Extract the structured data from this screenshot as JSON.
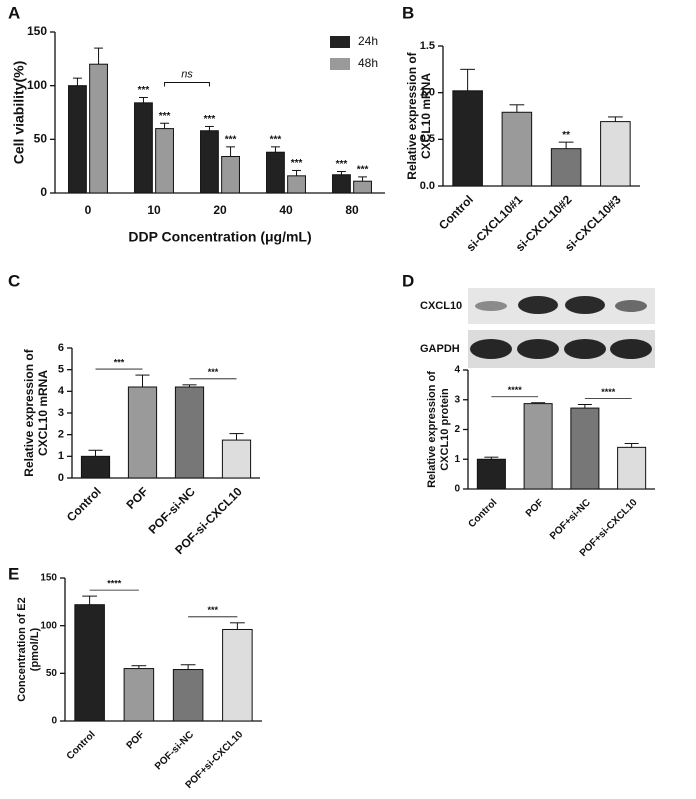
{
  "chart_data": [
    {
      "panel": "A",
      "type": "bar",
      "ylabel": [
        "Cell viability(%)"
      ],
      "xlabel": "DDP Concentration (μg/mL)",
      "categories": [
        "0",
        "10",
        "20",
        "40",
        "80"
      ],
      "series": [
        {
          "name": "24h",
          "color": "#222222",
          "values": [
            100,
            84,
            58,
            38,
            17
          ],
          "errors": [
            7,
            5,
            4,
            5,
            3
          ],
          "significance": [
            null,
            "***",
            "***",
            "***",
            "***"
          ]
        },
        {
          "name": "48h",
          "color": "#9a9a9a",
          "values": [
            120,
            60,
            34,
            16,
            11
          ],
          "errors": [
            15,
            5,
            9,
            5,
            4
          ],
          "significance": [
            null,
            "***",
            "***",
            "***",
            "***"
          ]
        }
      ],
      "annotations": [
        "ns"
      ],
      "ylim": [
        0,
        150
      ],
      "yticks": [
        0,
        50,
        100,
        150
      ]
    },
    {
      "panel": "B",
      "type": "bar",
      "ylabel": [
        "Relative expression of",
        "CXCL10 mRNA"
      ],
      "categories": [
        "Control",
        "si-CXCL10#1",
        "si-CXCL10#2",
        "si-CXCL10#3"
      ],
      "values": [
        1.02,
        0.79,
        0.4,
        0.69
      ],
      "errors": [
        0.23,
        0.08,
        0.07,
        0.05
      ],
      "colors": [
        "#222222",
        "#9a9a9a",
        "#777777",
        "#dddddd"
      ],
      "significance": [
        null,
        null,
        "**",
        null
      ],
      "ylim": [
        0,
        1.5
      ],
      "yticks": [
        {
          "value": 0,
          "label": "0.0"
        },
        0.5,
        {
          "value": 1,
          "label": "1.0"
        },
        1.5
      ]
    },
    {
      "panel": "C",
      "type": "bar",
      "ylabel": [
        "Relative expression of",
        "CXCL10 mRNA"
      ],
      "categories": [
        "Control",
        "POF",
        "POF-si-NC",
        "POF-si-CXCL10"
      ],
      "values": [
        1.0,
        4.2,
        4.2,
        1.75
      ],
      "errors": [
        0.28,
        0.55,
        0.1,
        0.3
      ],
      "colors": [
        "#222222",
        "#9a9a9a",
        "#777777",
        "#dddddd"
      ],
      "comparisons": [
        {
          "groups": [
            "Control",
            "POF"
          ],
          "label": "***"
        },
        {
          "groups": [
            "POF-si-NC",
            "POF-si-CXCL10"
          ],
          "label": "***"
        }
      ],
      "ylim": [
        0,
        6
      ],
      "yticks": [
        0,
        1,
        2,
        3,
        4,
        5,
        6
      ]
    },
    {
      "panel": "D",
      "type": "bar",
      "blot_labels": [
        "CXCL10",
        "GAPDH"
      ],
      "ylabel": [
        "Relative expression of",
        "CXCL10 protein"
      ],
      "categories": [
        "Control",
        "POF",
        "POF+si-NC",
        "POF+si-CXCL10"
      ],
      "values": [
        1.0,
        2.87,
        2.72,
        1.4
      ],
      "errors": [
        0.07,
        0.03,
        0.12,
        0.13
      ],
      "colors": [
        "#222222",
        "#9a9a9a",
        "#777777",
        "#dddddd"
      ],
      "comparisons": [
        {
          "groups": [
            "Control",
            "POF"
          ],
          "label": "****"
        },
        {
          "groups": [
            "POF+si-NC",
            "POF+si-CXCL10"
          ],
          "label": "****"
        }
      ],
      "ylim": [
        0,
        4
      ],
      "yticks": [
        0,
        1,
        2,
        3,
        4
      ]
    },
    {
      "panel": "E",
      "type": "bar",
      "ylabel": [
        "Concentration of E2",
        "(pmol/L)"
      ],
      "categories": [
        "Control",
        "POF",
        "POF-si-NC",
        "POF+si-CXCL10"
      ],
      "values": [
        122,
        55,
        54,
        96
      ],
      "errors": [
        9,
        3,
        5,
        7
      ],
      "colors": [
        "#222222",
        "#9a9a9a",
        "#777777",
        "#dddddd"
      ],
      "comparisons": [
        {
          "groups": [
            "Control",
            "POF"
          ],
          "label": "****"
        },
        {
          "groups": [
            "POF-si-NC",
            "POF+si-CXCL10"
          ],
          "label": "***"
        }
      ],
      "ylim": [
        0,
        150
      ],
      "yticks": [
        0,
        50,
        100,
        150
      ]
    }
  ]
}
